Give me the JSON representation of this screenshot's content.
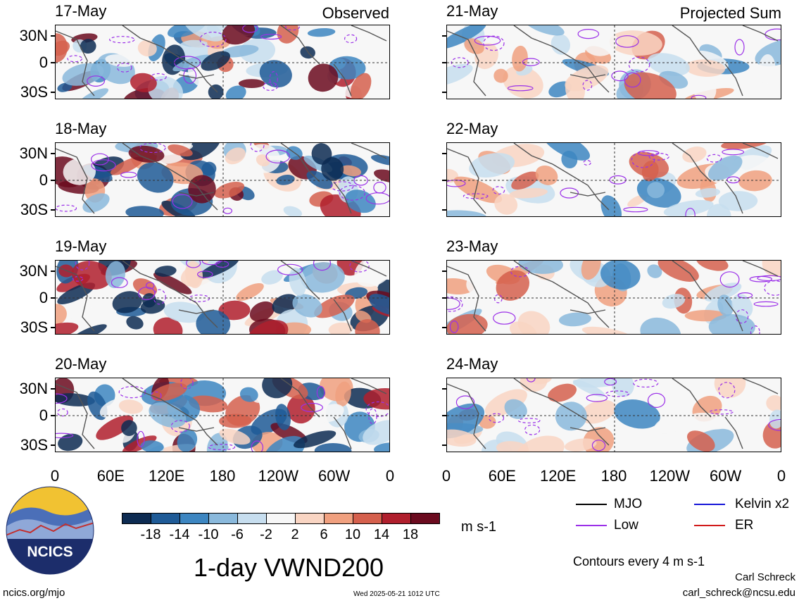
{
  "panels_left": [
    {
      "date": "17-May",
      "tag": "Observed"
    },
    {
      "date": "18-May",
      "tag": ""
    },
    {
      "date": "19-May",
      "tag": ""
    },
    {
      "date": "20-May",
      "tag": ""
    }
  ],
  "panels_right": [
    {
      "date": "21-May",
      "tag": "Projected Sum"
    },
    {
      "date": "22-May",
      "tag": ""
    },
    {
      "date": "23-May",
      "tag": ""
    },
    {
      "date": "24-May",
      "tag": ""
    }
  ],
  "lat_labels": [
    "30N",
    "0",
    "30S"
  ],
  "lon_labels": [
    "0",
    "60E",
    "120E",
    "180",
    "120W",
    "60W",
    "0"
  ],
  "colorbar": {
    "ticks": [
      "-18",
      "-14",
      "-10",
      "-6",
      "-2",
      "2",
      "6",
      "10",
      "14",
      "18"
    ],
    "units": "m s-1",
    "colors": [
      "#0d2b52",
      "#1f5b97",
      "#3d86c1",
      "#8ab9dc",
      "#c7deef",
      "#f7f7f7",
      "#f9d5c3",
      "#f0a07f",
      "#d5604d",
      "#b01f2d",
      "#6b0b1f"
    ]
  },
  "title": "1-day VWND200",
  "legend": {
    "items": [
      {
        "label": "MJO",
        "color": "#000000"
      },
      {
        "label": "Kelvin x2",
        "color": "#1515d8"
      },
      {
        "label": "Low",
        "color": "#9b30e8"
      },
      {
        "label": "ER",
        "color": "#d11a1a"
      }
    ],
    "contours_note": "Contours every 4 m s-1"
  },
  "logo": {
    "text": "NCICS"
  },
  "footer": {
    "site": "ncics.org/mjo",
    "timestamp": "Wed 2025-05-21 1012 UTC",
    "author": "Carl Schreck",
    "email": "carl_schreck@ncsu.edu"
  }
}
